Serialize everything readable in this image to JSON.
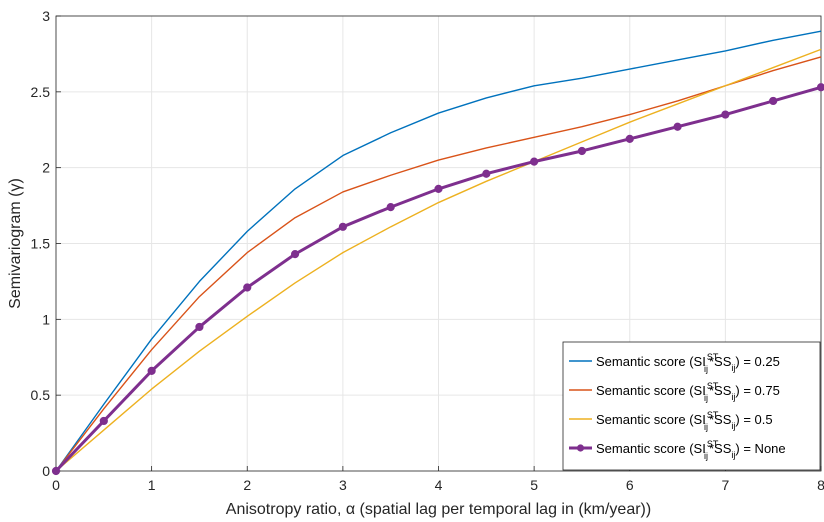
{
  "chart_data": {
    "type": "line",
    "xlabel": "Anisotropy ratio, α (spatial lag per temporal lag in (km/year))",
    "ylabel": "Semivariogram (γ)",
    "xlim": [
      0,
      8
    ],
    "ylim": [
      0,
      3
    ],
    "xticks": [
      "0",
      "1",
      "2",
      "3",
      "4",
      "5",
      "6",
      "7",
      "8"
    ],
    "yticks": [
      "0",
      "0.5",
      "1",
      "1.5",
      "2",
      "2.5",
      "3"
    ],
    "grid": true,
    "legend_position": "bottom-right",
    "x": [
      0,
      0.5,
      1,
      1.5,
      2,
      2.5,
      3,
      3.5,
      4,
      4.5,
      5,
      5.5,
      6,
      6.5,
      7,
      7.5,
      8
    ],
    "series": [
      {
        "name": "Semantic score (SI_ij^ST*SS_ij) = 0.25",
        "legend": {
          "prefix": "Semantic score (SI",
          "sub": "ij",
          "sup": "ST",
          "mid": "*SS",
          "sub2": "ij",
          "suffix": ") = 0.25"
        },
        "color": "#0072BD",
        "values": [
          0,
          0.44,
          0.87,
          1.25,
          1.58,
          1.86,
          2.08,
          2.23,
          2.36,
          2.46,
          2.54,
          2.59,
          2.65,
          2.71,
          2.77,
          2.84,
          2.9
        ]
      },
      {
        "name": "Semantic score (SI_ij^ST*SS_ij) = 0.75",
        "legend": {
          "prefix": "Semantic score (SI",
          "sub": "ij",
          "sup": "ST",
          "mid": "*SS",
          "sub2": "ij",
          "suffix": ") = 0.75"
        },
        "color": "#D95319",
        "values": [
          0,
          0.41,
          0.8,
          1.15,
          1.44,
          1.67,
          1.84,
          1.95,
          2.05,
          2.13,
          2.2,
          2.27,
          2.35,
          2.44,
          2.54,
          2.64,
          2.73
        ]
      },
      {
        "name": "Semantic score (SI_ij^ST*SS_ij) = 0.5",
        "legend": {
          "prefix": "Semantic score (SI",
          "sub": "ij",
          "sup": "ST",
          "mid": "*SS",
          "sub2": "ij",
          "suffix": ") = 0.5"
        },
        "color": "#EDB120",
        "values": [
          0,
          0.27,
          0.54,
          0.79,
          1.02,
          1.24,
          1.44,
          1.61,
          1.77,
          1.91,
          2.04,
          2.17,
          2.3,
          2.42,
          2.54,
          2.66,
          2.78
        ]
      },
      {
        "name": "Semantic score (SI_ij^ST*SS_ij) = None",
        "legend": {
          "prefix": "Semantic score (SI",
          "sub": "ij",
          "sup": "ST",
          "mid": "*SS",
          "sub2": "ij",
          "suffix": ") = None"
        },
        "color": "#7E2F8E",
        "markers": true,
        "values": [
          0,
          0.33,
          0.66,
          0.95,
          1.21,
          1.43,
          1.61,
          1.74,
          1.86,
          1.96,
          2.04,
          2.11,
          2.19,
          2.27,
          2.35,
          2.44,
          2.53
        ]
      }
    ]
  }
}
